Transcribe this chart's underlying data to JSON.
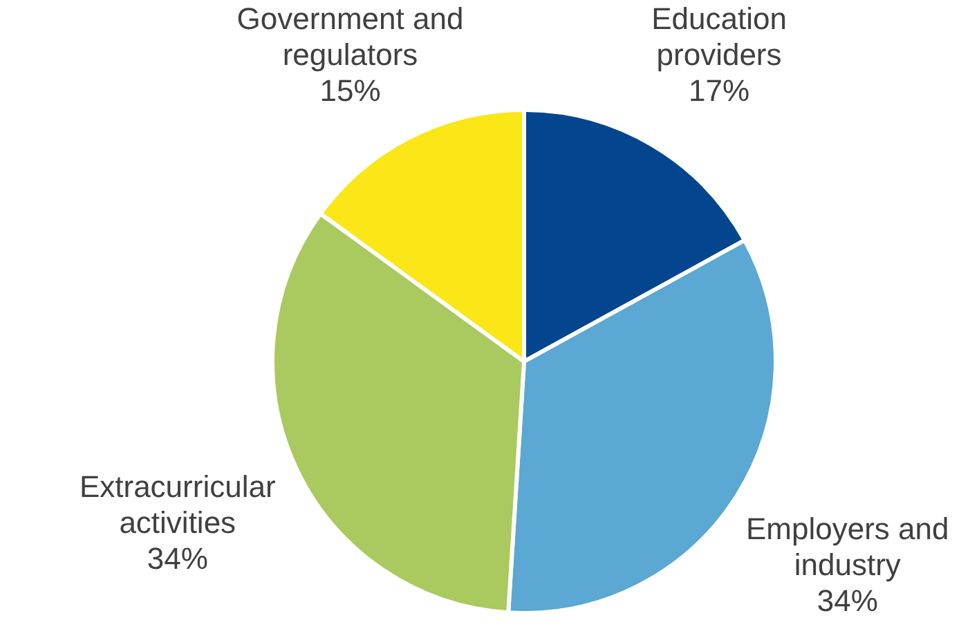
{
  "chart_data": {
    "type": "pie",
    "categories": [
      "Education providers",
      "Employers and industry",
      "Extracurricular activities",
      "Government and regulators"
    ],
    "values": [
      17,
      34,
      34,
      15
    ],
    "colors": [
      "#03468f",
      "#5aa8d3",
      "#aac95e",
      "#fbe617"
    ],
    "value_labels": [
      "17%",
      "34%",
      "34%",
      "15%"
    ],
    "legend": false
  }
}
